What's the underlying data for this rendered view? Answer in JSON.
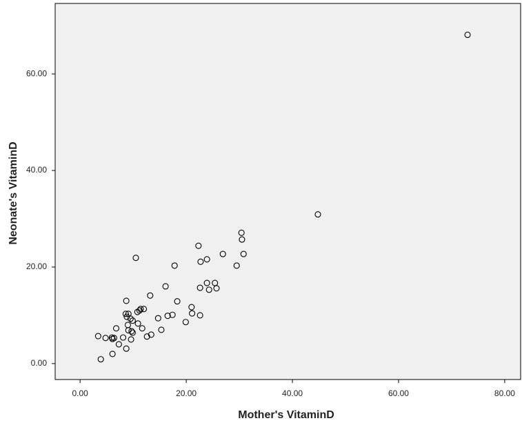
{
  "chart_data": {
    "type": "scatter",
    "xlabel": "Mother's VitaminD",
    "ylabel": "Neonate's VitaminD",
    "color": "#000000",
    "background": "#f0f0f0",
    "xlim": [
      -4.7,
      83
    ],
    "ylim": [
      -3.3,
      74.6
    ],
    "xticks": [
      {
        "value": 0,
        "label": "0.00"
      },
      {
        "value": 20,
        "label": "20.00"
      },
      {
        "value": 40,
        "label": "40.00"
      },
      {
        "value": 60,
        "label": "60.00"
      },
      {
        "value": 80,
        "label": "80.00"
      }
    ],
    "yticks": [
      {
        "value": 0,
        "label": "0.00"
      },
      {
        "value": 20,
        "label": "20.00"
      },
      {
        "value": 40,
        "label": "40.00"
      },
      {
        "value": 60,
        "label": "60.00"
      }
    ],
    "x": [
      73.0,
      44.8,
      30.4,
      30.5,
      30.8,
      29.5,
      26.9,
      22.3,
      22.7,
      23.9,
      25.4,
      25.7,
      23.9,
      24.3,
      22.6,
      17.8,
      10.5,
      16.1,
      13.2,
      18.3,
      21.0,
      21.1,
      22.6,
      17.4,
      16.5,
      19.9,
      14.7,
      15.3,
      13.4,
      12.6,
      8.7,
      8.6,
      9.1,
      8.8,
      9.5,
      9.9,
      10.8,
      11.2,
      12.0,
      11.4,
      10.9,
      11.7,
      9.0,
      9.1,
      9.7,
      9.9,
      6.8,
      8.1,
      9.6,
      7.3,
      6.0,
      6.4,
      6.1,
      4.8,
      3.4,
      6.1,
      8.7,
      3.9
    ],
    "y": [
      68.1,
      30.9,
      27.1,
      25.7,
      22.7,
      20.3,
      22.7,
      24.4,
      21.1,
      21.6,
      16.7,
      15.6,
      16.7,
      15.3,
      15.7,
      20.3,
      21.9,
      16.0,
      14.1,
      12.9,
      11.7,
      10.4,
      10.0,
      10.1,
      9.9,
      8.6,
      9.4,
      7.0,
      6.0,
      5.6,
      13.0,
      10.3,
      10.3,
      9.7,
      9.3,
      8.9,
      10.7,
      11.0,
      11.3,
      11.3,
      8.3,
      7.3,
      8.0,
      6.9,
      6.7,
      6.4,
      7.3,
      5.4,
      5.0,
      4.0,
      5.4,
      5.3,
      5.1,
      5.3,
      5.7,
      2.0,
      3.1,
      0.9
    ]
  }
}
